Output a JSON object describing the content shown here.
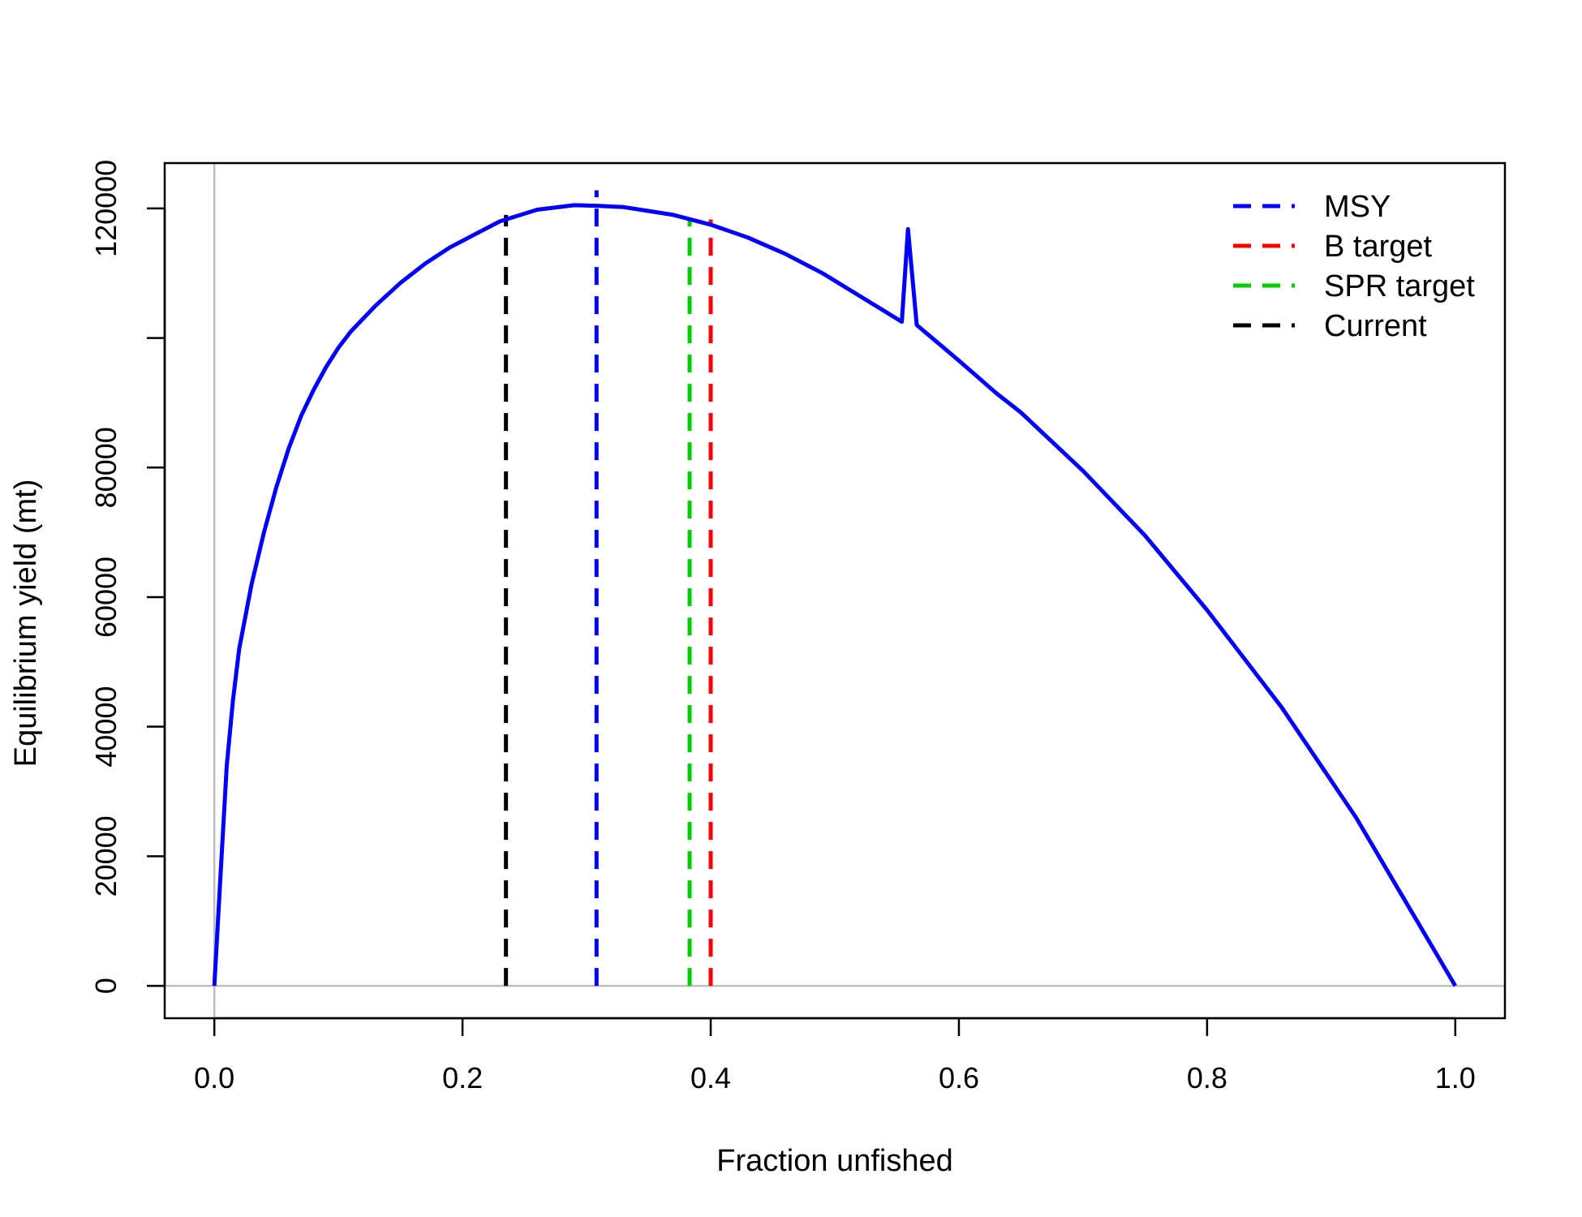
{
  "chart_data": {
    "type": "line",
    "title": "",
    "xlabel": "Fraction unfished",
    "ylabel": "Equilibrium yield (mt)",
    "xlim": [
      -0.04,
      1.04
    ],
    "ylim": [
      -5000,
      127000
    ],
    "x_ticks": [
      0.0,
      0.2,
      0.4,
      0.6,
      0.8,
      1.0
    ],
    "x_tick_labels": [
      "0.0",
      "0.2",
      "0.4",
      "0.6",
      "0.8",
      "1.0"
    ],
    "y_ticks": [
      0,
      20000,
      40000,
      60000,
      80000,
      100000,
      120000
    ],
    "y_tick_labels": [
      "0",
      "20000",
      "40000",
      "60000",
      "80000",
      "",
      "120000"
    ],
    "grid": false,
    "reference_lines": {
      "x": 0,
      "y": 0,
      "color": "#bebebe"
    },
    "series": [
      {
        "color": "#0000ff",
        "x": [
          0.0,
          0.005,
          0.01,
          0.015,
          0.02,
          0.03,
          0.04,
          0.05,
          0.06,
          0.07,
          0.08,
          0.09,
          0.1,
          0.11,
          0.12,
          0.13,
          0.15,
          0.17,
          0.19,
          0.21,
          0.23,
          0.26,
          0.29,
          0.31,
          0.33,
          0.37,
          0.4,
          0.43,
          0.46,
          0.49,
          0.52,
          0.554,
          0.559,
          0.566,
          0.6,
          0.63,
          0.65,
          0.7,
          0.75,
          0.8,
          0.86,
          0.92,
          0.96,
          1.0
        ],
        "y": [
          0,
          17000,
          34000,
          44000,
          52000,
          62000,
          70000,
          77000,
          83000,
          88000,
          92000,
          95500,
          98500,
          101000,
          103000,
          105000,
          108500,
          111500,
          114000,
          116000,
          118000,
          119800,
          120500,
          120400,
          120200,
          119000,
          117500,
          115500,
          113000,
          110000,
          106500,
          102500,
          116800,
          102000,
          96500,
          91500,
          88500,
          79500,
          69500,
          58000,
          43000,
          26000,
          13000,
          0
        ]
      }
    ],
    "vlines": [
      {
        "name": "MSY",
        "x": 0.308,
        "ymax": 122800,
        "color": "#0000ff"
      },
      {
        "name": "B target",
        "x": 0.4,
        "ymax": 118300,
        "color": "#ff0000"
      },
      {
        "name": "SPR target",
        "x": 0.383,
        "ymax": 118500,
        "color": "#00cd00"
      },
      {
        "name": "Current",
        "x": 0.235,
        "ymax": 119000,
        "color": "#000000"
      }
    ],
    "legend": {
      "placement": "top-right",
      "entries": [
        {
          "label": "MSY",
          "color": "#0000ff"
        },
        {
          "label": "B target",
          "color": "#ff0000"
        },
        {
          "label": "SPR target",
          "color": "#00cd00"
        },
        {
          "label": "Current",
          "color": "#000000"
        }
      ]
    }
  }
}
